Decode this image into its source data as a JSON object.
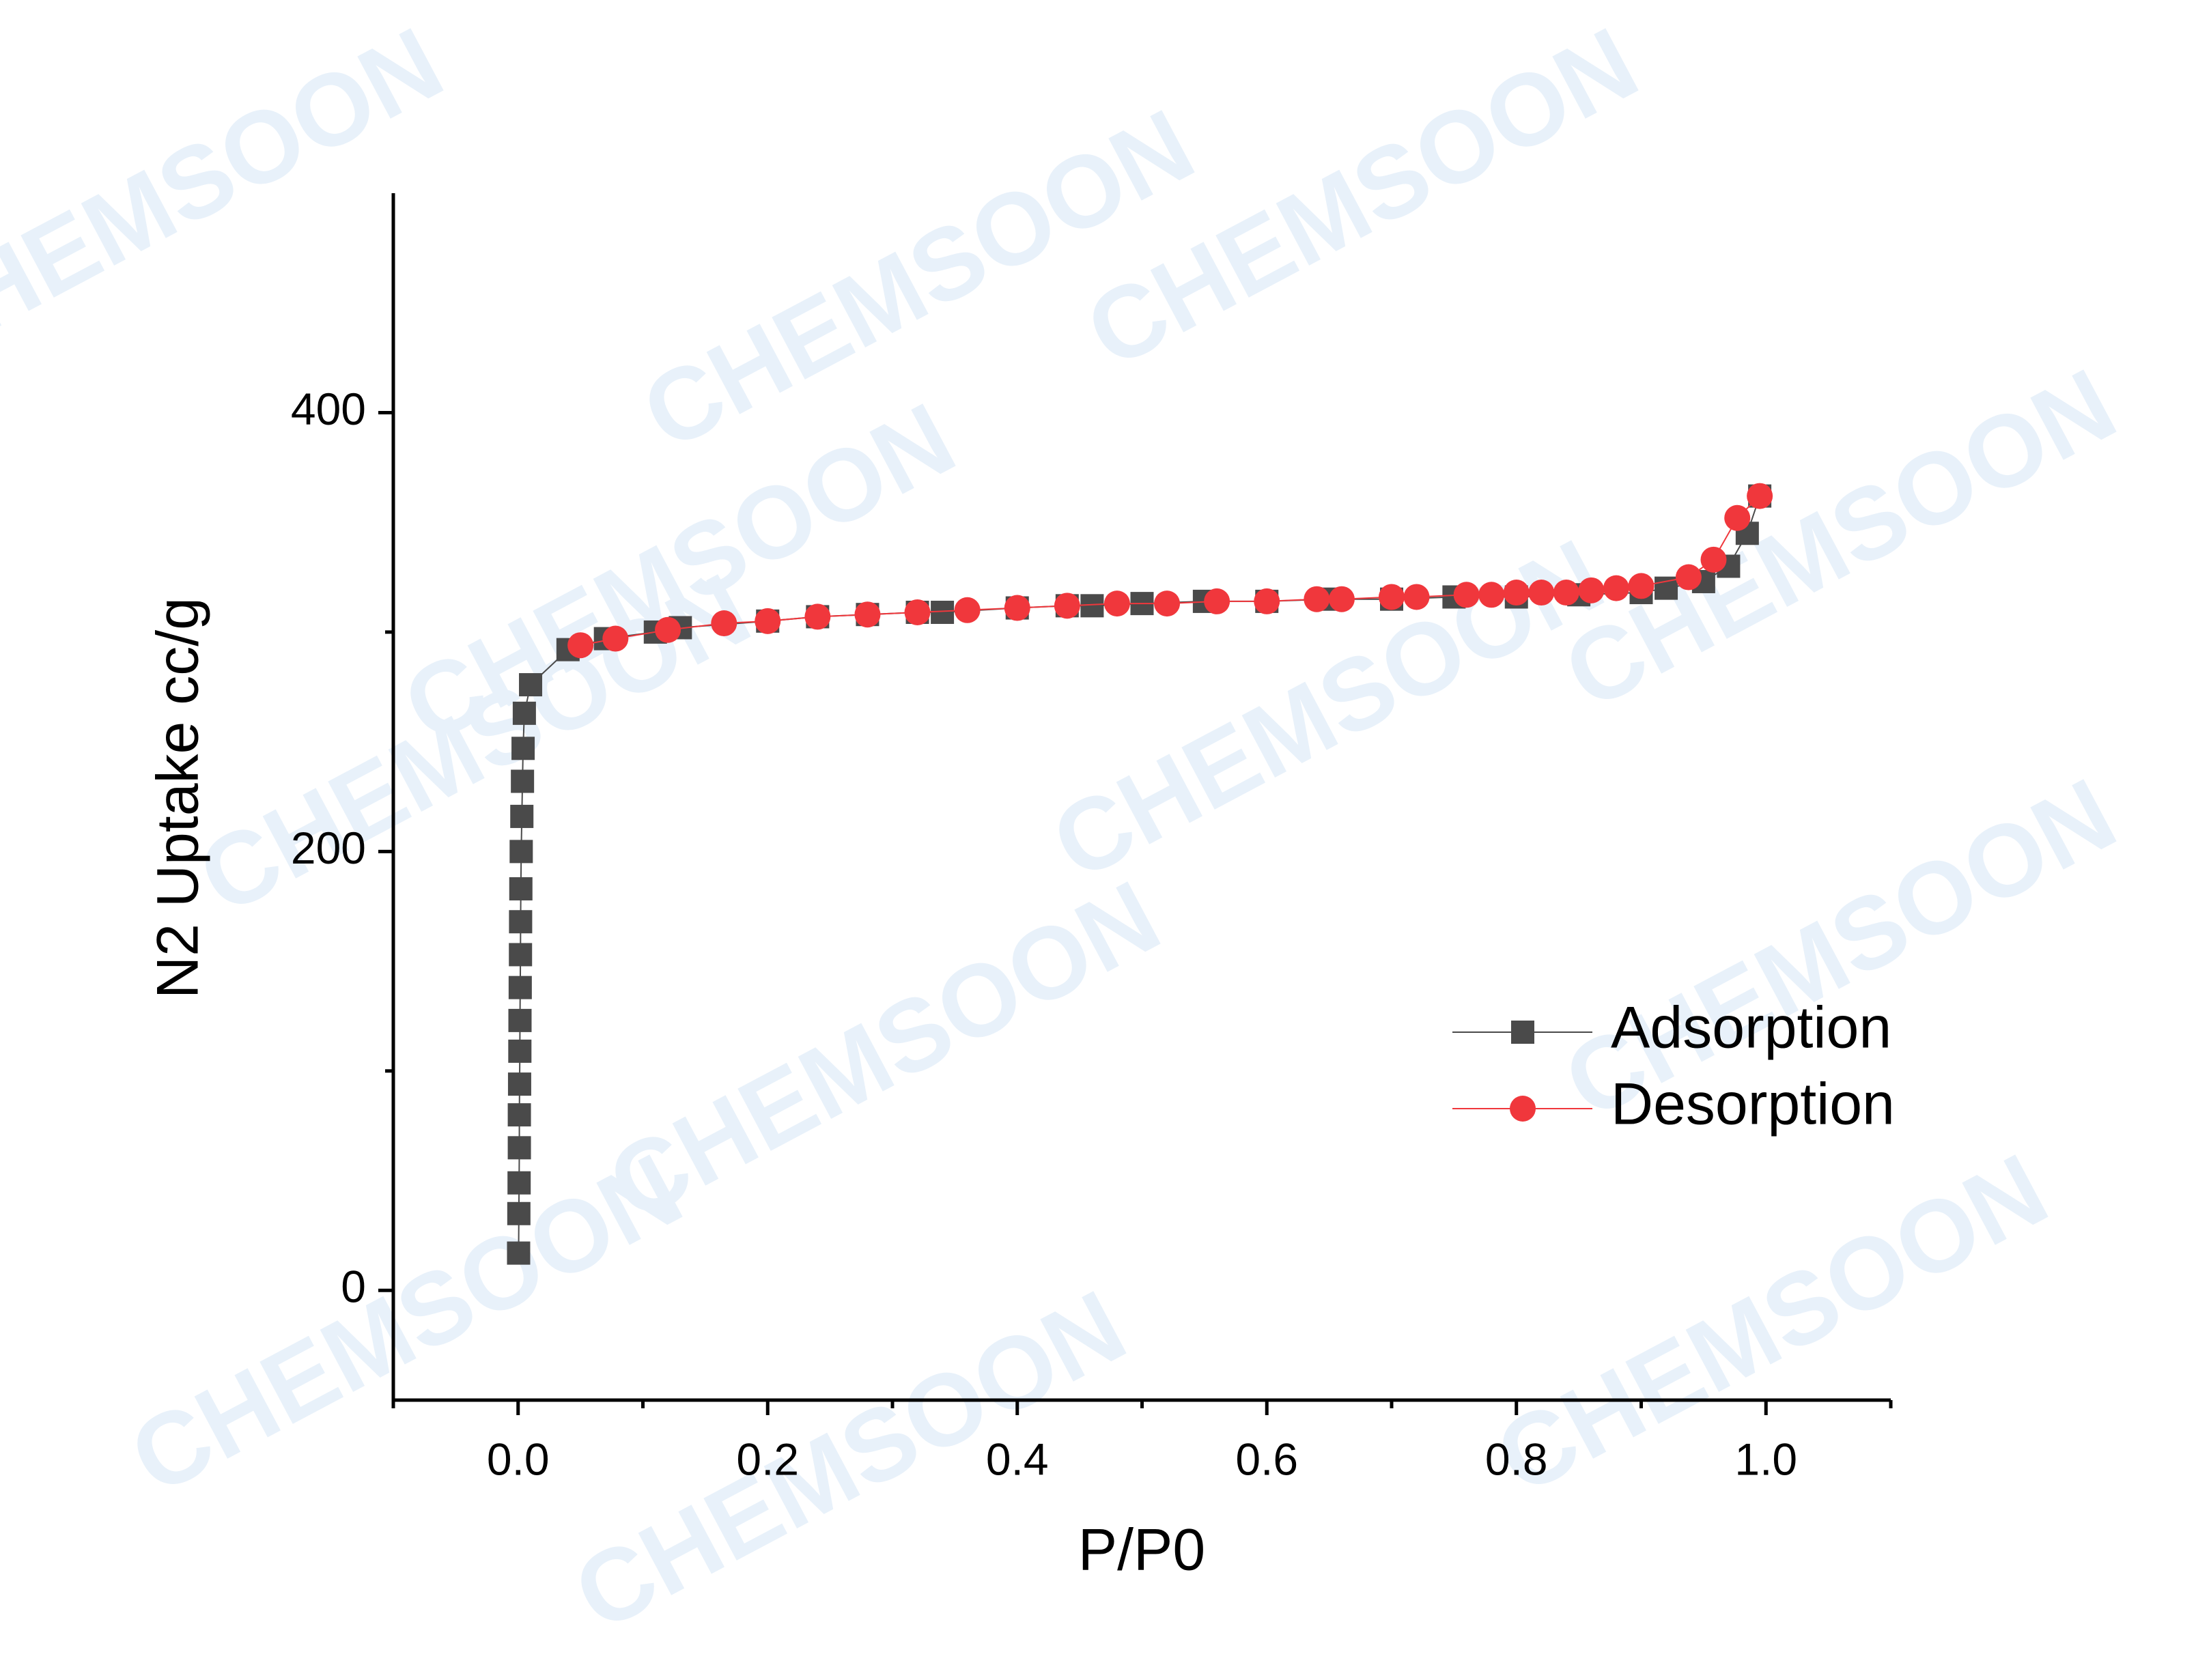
{
  "chart_data": {
    "type": "scatter",
    "xlabel": "P/P0",
    "ylabel": "N2 Uptake cc/g",
    "watermark": "CHEMSOON",
    "xlim": [
      -0.1,
      1.1
    ],
    "ylim": [
      -50,
      500
    ],
    "xticks": [
      {
        "value": 0,
        "label": "0.0"
      },
      {
        "value": 0.2,
        "label": "0.2"
      },
      {
        "value": 0.4,
        "label": "0.4"
      },
      {
        "value": 0.6,
        "label": "0.6"
      },
      {
        "value": 0.8,
        "label": "0.8"
      },
      {
        "value": 1,
        "label": "1.0"
      }
    ],
    "xminorticks": [
      -0.1,
      0.1,
      0.3,
      0.5,
      0.7,
      0.9,
      1.1
    ],
    "yticks": [
      0,
      200,
      400
    ],
    "yminorticks": [
      100,
      300
    ],
    "legend": "right",
    "series": [
      {
        "name": "Adsorption",
        "color": "#4a4a4a",
        "marker": "square",
        "x": [
          0.0004,
          0.0006,
          0.0008,
          0.001,
          0.001,
          0.0012,
          0.0014,
          0.0015,
          0.0017,
          0.0019,
          0.002,
          0.0022,
          0.0025,
          0.003,
          0.0035,
          0.004,
          0.005,
          0.01,
          0.04,
          0.07,
          0.11,
          0.13,
          0.2,
          0.24,
          0.28,
          0.32,
          0.34,
          0.4,
          0.44,
          0.46,
          0.5,
          0.55,
          0.6,
          0.65,
          0.7,
          0.75,
          0.8,
          0.85,
          0.9,
          0.92,
          0.95,
          0.97,
          0.985,
          0.995
        ],
        "values": [
          17,
          35,
          49,
          65,
          80,
          94,
          109,
          123,
          138,
          153,
          168,
          183,
          200,
          216,
          232,
          247,
          263,
          276,
          292,
          297,
          300,
          302,
          305,
          307,
          308,
          309,
          309,
          311,
          312,
          312,
          313,
          314,
          314,
          315,
          315,
          316,
          316,
          317,
          318,
          320,
          323,
          330,
          345,
          362
        ]
      },
      {
        "name": "Desorption",
        "color": "#f0373c",
        "marker": "circle",
        "x": [
          0.995,
          0.977,
          0.958,
          0.938,
          0.9,
          0.88,
          0.86,
          0.84,
          0.82,
          0.8,
          0.78,
          0.76,
          0.72,
          0.7,
          0.66,
          0.64,
          0.6,
          0.56,
          0.52,
          0.48,
          0.44,
          0.4,
          0.36,
          0.32,
          0.28,
          0.24,
          0.2,
          0.165,
          0.12,
          0.078,
          0.05
        ],
        "values": [
          362,
          352,
          333,
          325,
          321,
          320,
          319,
          318,
          318,
          318,
          317,
          317,
          316,
          316,
          315,
          315,
          314,
          314,
          313,
          313,
          312,
          311,
          310,
          309,
          308,
          307,
          305,
          304,
          301,
          297,
          294
        ]
      }
    ]
  }
}
